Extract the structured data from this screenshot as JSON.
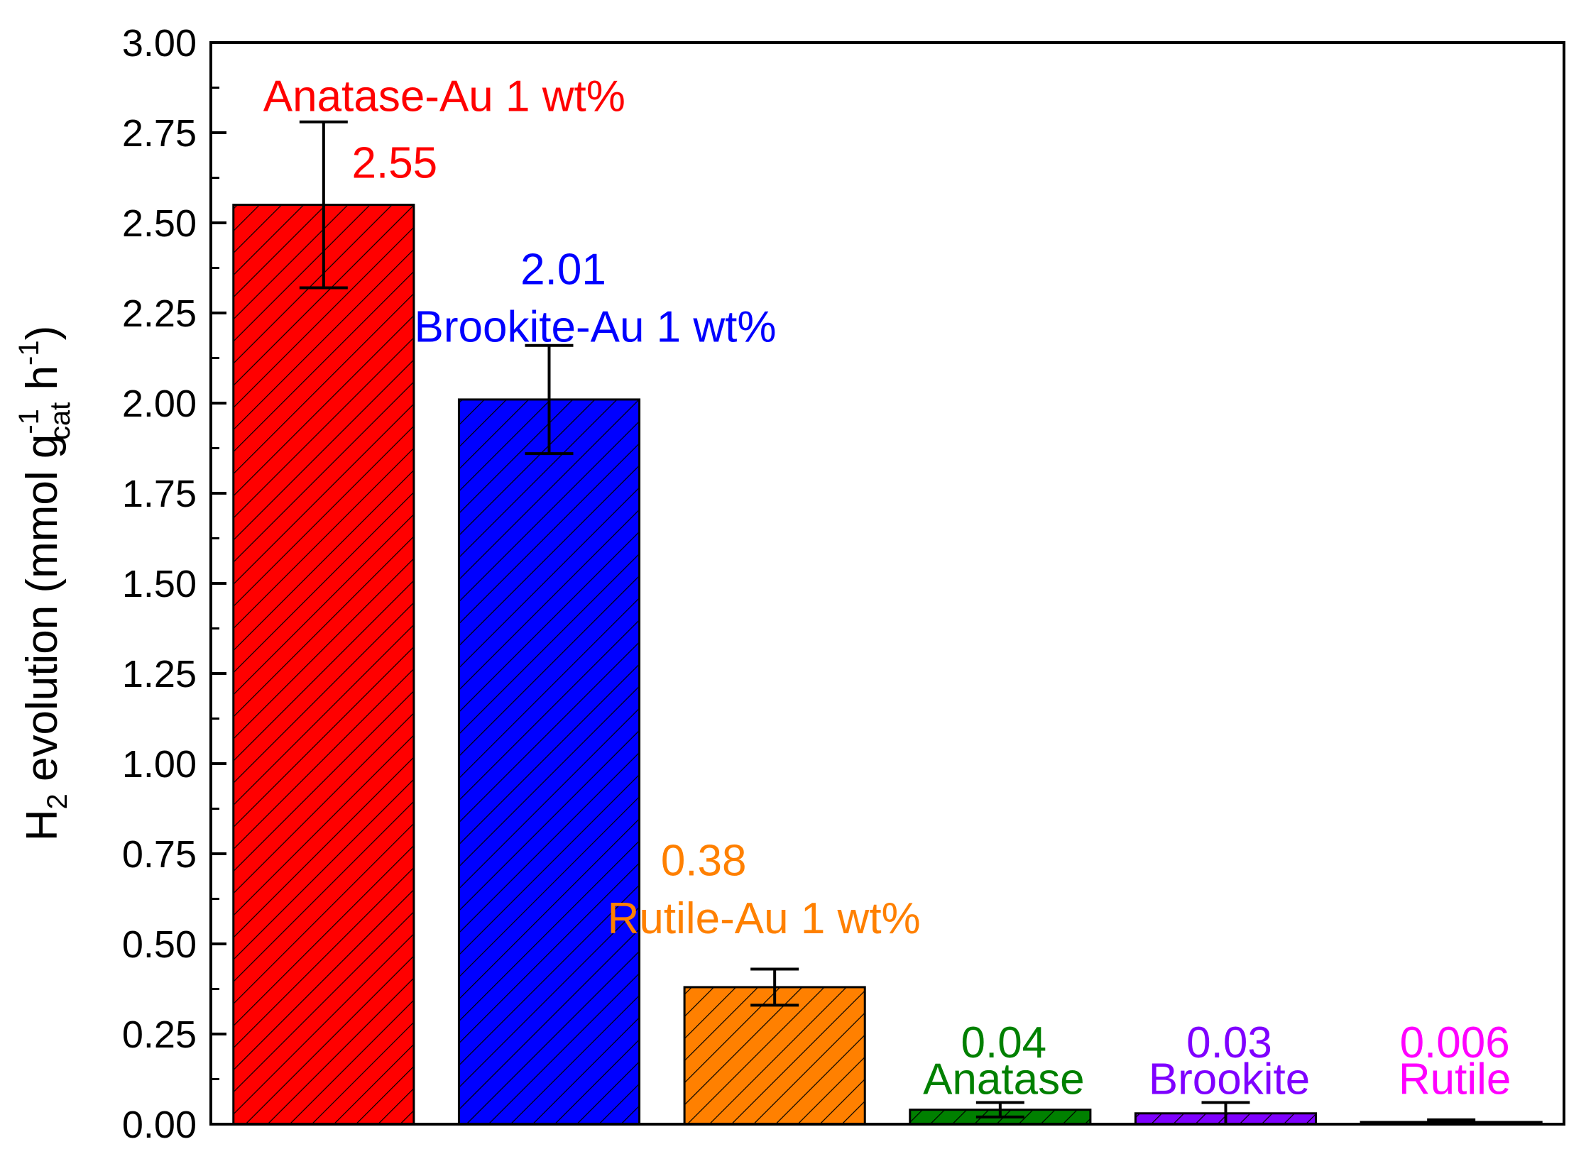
{
  "chart_data": {
    "type": "bar",
    "ylabel": {
      "base": "H",
      "sub_2": "2",
      "mid": " evolution (mmol g",
      "sup_1": "-1",
      "sub_cat": "cat",
      "tail": " h",
      "sup_2": "-1",
      "end": ")"
    },
    "ylim": [
      0,
      3.0
    ],
    "yticks": [
      "0.00",
      "0.25",
      "0.50",
      "0.75",
      "1.00",
      "1.25",
      "1.50",
      "1.75",
      "2.00",
      "2.25",
      "2.50",
      "2.75",
      "3.00"
    ],
    "grid": false,
    "legend": "none",
    "bars": [
      {
        "name": "Anatase-Au 1 wt%",
        "value": 2.55,
        "value_label": "2.55",
        "error": 0.23,
        "color": "#ff0000"
      },
      {
        "name": "Brookite-Au 1 wt%",
        "value": 2.01,
        "value_label": "2.01",
        "error": 0.15,
        "color": "#0000ff"
      },
      {
        "name": "Rutile-Au 1 wt%",
        "value": 0.38,
        "value_label": "0.38",
        "error": 0.05,
        "color": "#ff8000"
      },
      {
        "name": "Anatase",
        "value": 0.04,
        "value_label": "0.04",
        "error": 0.02,
        "color": "#008000"
      },
      {
        "name": "Brookite",
        "value": 0.03,
        "value_label": "0.03",
        "error": 0.03,
        "color": "#7f00ff"
      },
      {
        "name": "Rutile",
        "value": 0.006,
        "value_label": "0.006",
        "error": 0.006,
        "color": "#ff00ff"
      }
    ],
    "pattern": "diagonal-hatch",
    "outline_color": "#000000"
  }
}
